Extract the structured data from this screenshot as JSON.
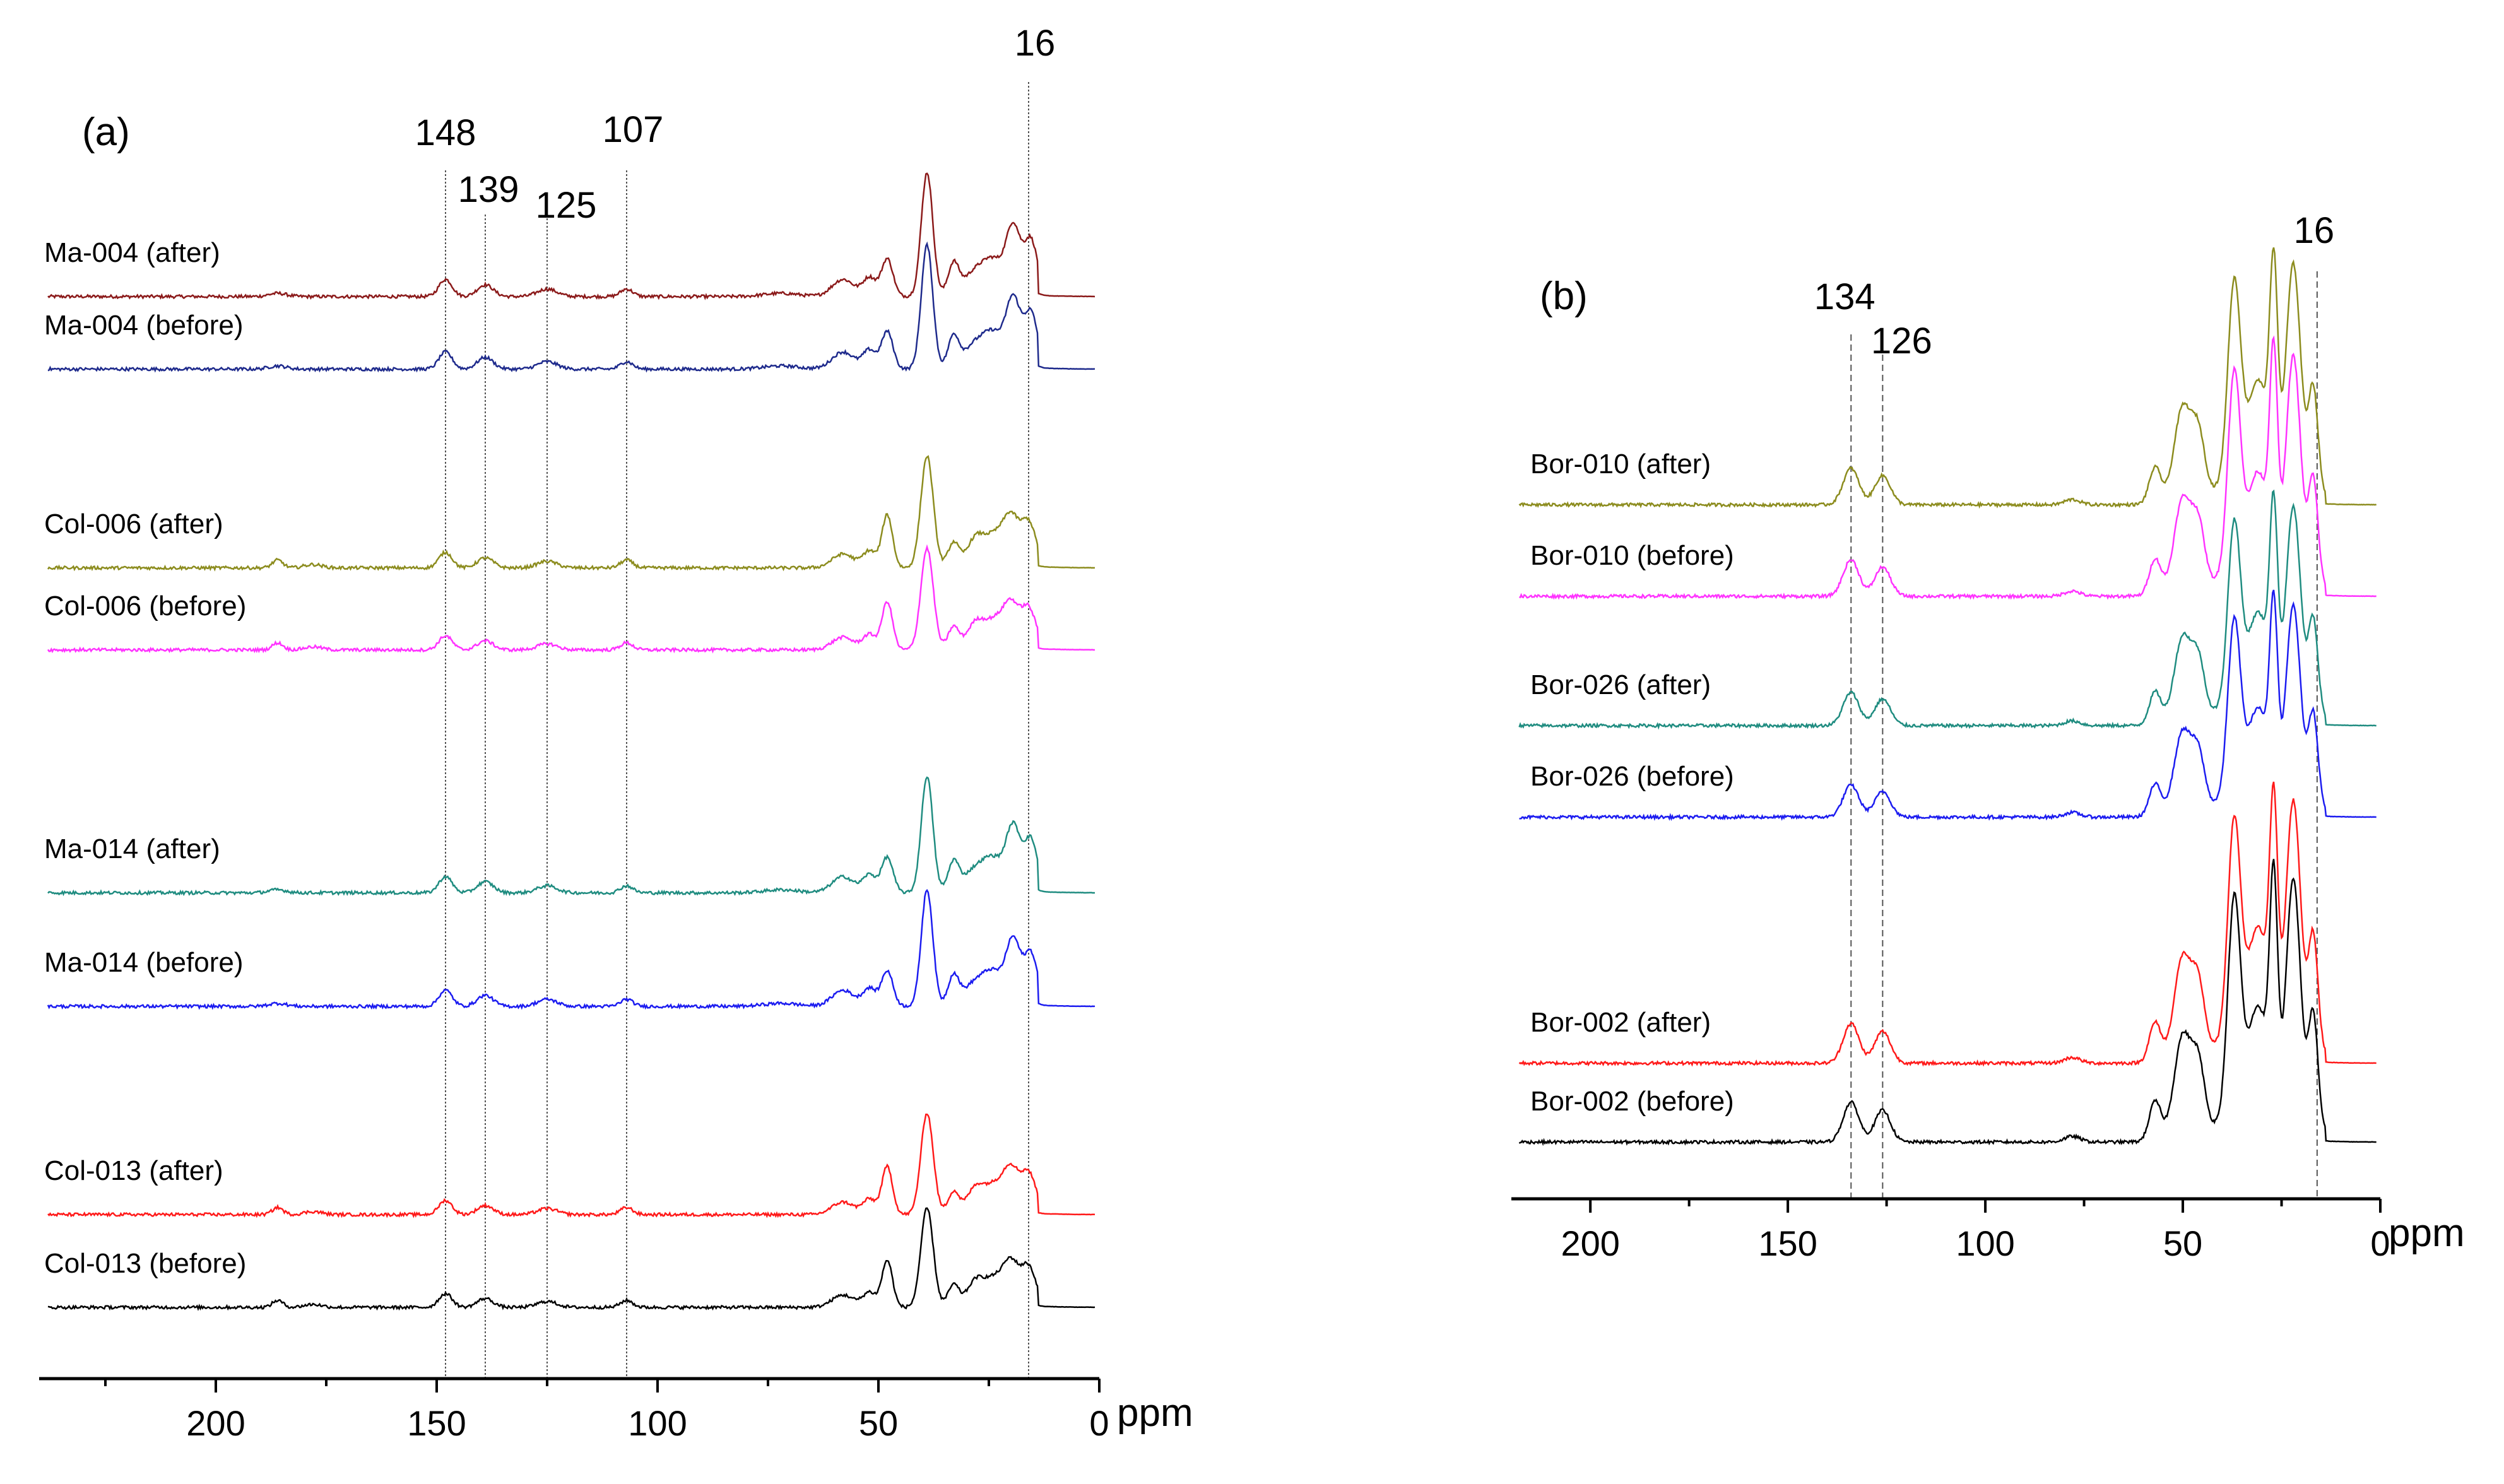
{
  "chart_data": [
    {
      "type": "line",
      "panel": "(a)",
      "xlabel": "ppm",
      "xlim": [
        240,
        0
      ],
      "x_reversed": true,
      "xticks": [
        200,
        150,
        100,
        50,
        0
      ],
      "grid": false,
      "reference_lines": [
        148,
        139,
        125,
        107,
        16
      ],
      "reference_labels": [
        "148",
        "139",
        "125",
        "107",
        "16"
      ],
      "series": [
        {
          "name": "Ma-004 (after)",
          "color": "#8b1a1a",
          "baseline": 0,
          "ns": "ma"
        },
        {
          "name": "Ma-004 (before)",
          "color": "#1e2a8c",
          "baseline": 1,
          "ns": "ma"
        },
        {
          "name": "Col-006 (after)",
          "color": "#8c8c1e",
          "baseline": 2,
          "ns": "col"
        },
        {
          "name": "Col-006 (before)",
          "color": "#ff33ff",
          "baseline": 3,
          "ns": "col"
        },
        {
          "name": "Ma-014 (after)",
          "color": "#1f8c80",
          "baseline": 4,
          "ns": "ma"
        },
        {
          "name": "Ma-014 (before)",
          "color": "#1c1cf0",
          "baseline": 5,
          "ns": "ma"
        },
        {
          "name": "Col-013 (after)",
          "color": "#ff1a1a",
          "baseline": 6,
          "ns": "col"
        },
        {
          "name": "Col-013 (before)",
          "color": "#000000",
          "baseline": 7,
          "ns": "col"
        }
      ]
    },
    {
      "type": "line",
      "panel": "(b)",
      "xlabel": "ppm",
      "xlim": [
        220,
        0
      ],
      "x_reversed": true,
      "xticks": [
        200,
        150,
        100,
        50,
        0
      ],
      "grid": false,
      "reference_lines": [
        134,
        126,
        16
      ],
      "reference_labels": [
        "134",
        "126",
        "16"
      ],
      "series": [
        {
          "name": "Bor-010 (after)",
          "color": "#8c8c1e",
          "baseline": 0
        },
        {
          "name": "Bor-010 (before)",
          "color": "#ff33ff",
          "baseline": 1
        },
        {
          "name": "Bor-026 (after)",
          "color": "#1f8c80",
          "baseline": 2
        },
        {
          "name": "Bor-026 (before)",
          "color": "#1c1cf0",
          "baseline": 3
        },
        {
          "name": "Bor-002 (after)",
          "color": "#ff1a1a",
          "baseline": 4
        },
        {
          "name": "Bor-002 (before)",
          "color": "#000000",
          "baseline": 5
        }
      ]
    }
  ]
}
